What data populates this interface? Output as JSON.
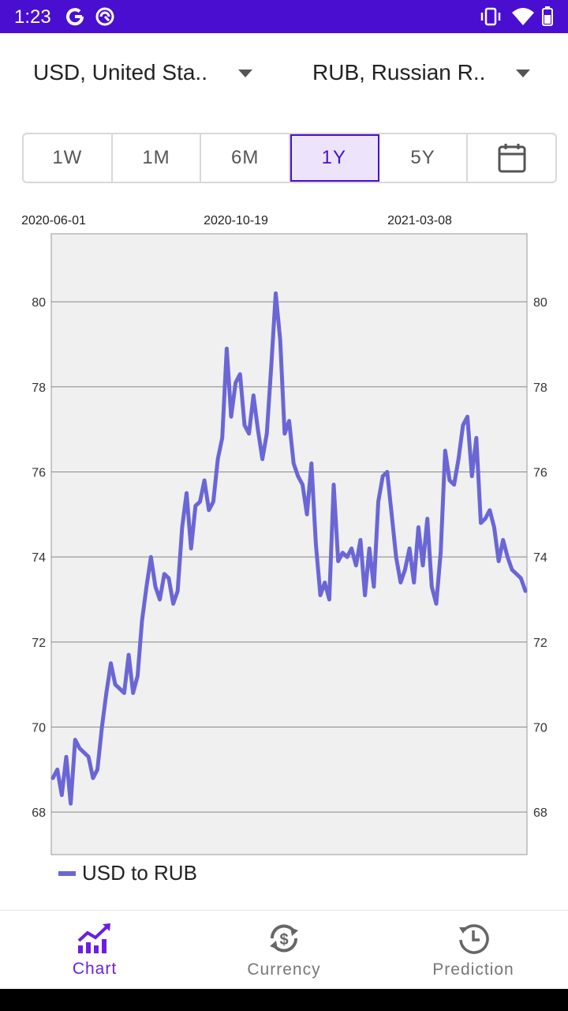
{
  "status_bar": {
    "time": "1:23",
    "left_icons": [
      "google-g-icon",
      "no-disturb-icon"
    ],
    "right_icons": [
      "vibrate-icon",
      "wifi-icon",
      "battery-icon"
    ],
    "bg_color": "#4a0ed1"
  },
  "selectors": {
    "from_currency": "USD, United Sta..",
    "to_currency": "RUB, Russian R.."
  },
  "ranges": {
    "items": [
      "1W",
      "1M",
      "6M",
      "1Y",
      "5Y"
    ],
    "selected": "1Y",
    "calendar_icon": "calendar-icon"
  },
  "chart_data": {
    "type": "line",
    "x_tick_labels": [
      "2020-06-01",
      "2020-10-19",
      "2021-03-08"
    ],
    "y_ticks": [
      68,
      70,
      72,
      74,
      76,
      78,
      80
    ],
    "ylim": [
      67,
      81.6
    ],
    "grid": true,
    "legend_position": "bottom-left",
    "series": [
      {
        "name": "USD to RUB",
        "color": "#6b66d6",
        "values": [
          68.8,
          69.0,
          68.4,
          69.3,
          68.2,
          69.7,
          69.5,
          69.4,
          69.3,
          68.8,
          69.0,
          70.0,
          70.8,
          71.5,
          71.0,
          70.9,
          70.8,
          71.7,
          70.8,
          71.2,
          72.5,
          73.3,
          74.0,
          73.3,
          73.0,
          73.6,
          73.5,
          72.9,
          73.2,
          74.7,
          75.5,
          74.2,
          75.2,
          75.3,
          75.8,
          75.1,
          75.3,
          76.3,
          76.8,
          78.9,
          77.3,
          78.1,
          78.3,
          77.1,
          76.9,
          77.8,
          77.0,
          76.3,
          76.9,
          78.5,
          80.2,
          79.1,
          76.9,
          77.2,
          76.2,
          75.9,
          75.7,
          75.0,
          76.2,
          74.3,
          73.1,
          73.4,
          73.0,
          75.7,
          73.9,
          74.1,
          74.0,
          74.2,
          73.8,
          74.4,
          73.1,
          74.2,
          73.3,
          75.3,
          75.9,
          76.0,
          75.0,
          74.0,
          73.4,
          73.7,
          74.2,
          73.4,
          74.7,
          73.8,
          74.9,
          73.3,
          72.9,
          74.1,
          76.5,
          75.8,
          75.7,
          76.3,
          77.1,
          77.3,
          75.9,
          76.8,
          74.8,
          74.9,
          75.1,
          74.7,
          73.9,
          74.4,
          74.0,
          73.7,
          73.6,
          73.5,
          73.2
        ]
      }
    ]
  },
  "bottom_nav": {
    "items": [
      {
        "label": "Chart",
        "icon": "trending-chart-icon",
        "active": true
      },
      {
        "label": "Currency",
        "icon": "currency-exchange-icon",
        "active": false
      },
      {
        "label": "Prediction",
        "icon": "history-clock-icon",
        "active": false
      }
    ],
    "active_color": "#6a1fe0"
  }
}
